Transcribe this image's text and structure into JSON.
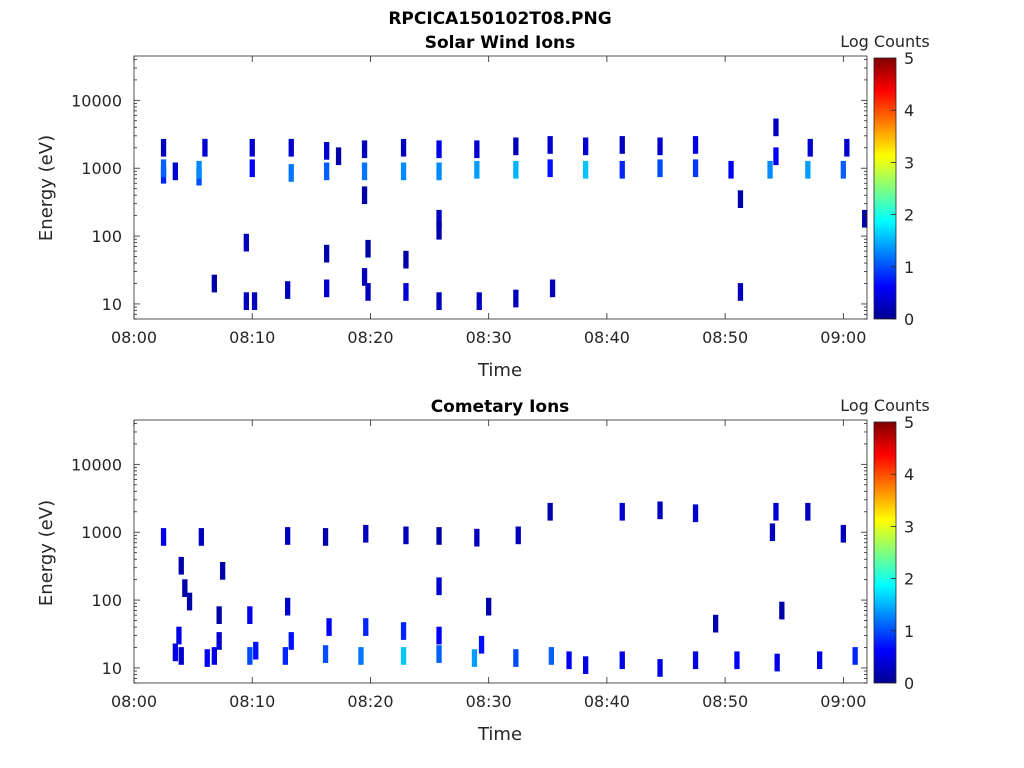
{
  "figure_title": "RPCICA150102T08.PNG",
  "chart_data": [
    {
      "type": "heatmap",
      "title": "Solar Wind Ions",
      "xlabel": "Time",
      "ylabel": "Energy (eV)",
      "x_ticks": [
        "08:00",
        "08:10",
        "08:20",
        "08:30",
        "08:40",
        "08:50",
        "09:00"
      ],
      "xlim": [
        "08:00",
        "09:02"
      ],
      "y_scale": "log",
      "y_ticks": [
        "10",
        "100",
        "1000",
        "10000"
      ],
      "ylim": [
        6,
        45000
      ],
      "colorbar": {
        "label": "Log Counts",
        "ticks": [
          "0",
          "1",
          "2",
          "3",
          "4",
          "5"
        ],
        "range": [
          0,
          5
        ],
        "colormap": "jet"
      },
      "grid": false,
      "cells": [
        {
          "t": "08:02.5",
          "e": 800,
          "v": 0.8
        },
        {
          "t": "08:02.5",
          "e": 1000,
          "v": 1.1
        },
        {
          "t": "08:02.5",
          "e": 2000,
          "v": 0.3
        },
        {
          "t": "08:03.5",
          "e": 900,
          "v": 0.4
        },
        {
          "t": "08:05.5",
          "e": 750,
          "v": 1.0
        },
        {
          "t": "08:05.5",
          "e": 950,
          "v": 1.3
        },
        {
          "t": "08:06",
          "e": 2000,
          "v": 0.4
        },
        {
          "t": "08:06.8",
          "e": 20,
          "v": 0.2
        },
        {
          "t": "08:09.5",
          "e": 80,
          "v": 0.3
        },
        {
          "t": "08:09.5",
          "e": 11,
          "v": 0.3
        },
        {
          "t": "08:10",
          "e": 1000,
          "v": 0.6
        },
        {
          "t": "08:10",
          "e": 2000,
          "v": 0.4
        },
        {
          "t": "08:10.2",
          "e": 11,
          "v": 0.3
        },
        {
          "t": "08:13",
          "e": 16,
          "v": 0.3
        },
        {
          "t": "08:13.3",
          "e": 850,
          "v": 1.2
        },
        {
          "t": "08:13.3",
          "e": 2000,
          "v": 0.4
        },
        {
          "t": "08:16.3",
          "e": 900,
          "v": 1.1
        },
        {
          "t": "08:16.3",
          "e": 1800,
          "v": 0.4
        },
        {
          "t": "08:16.3",
          "e": 17,
          "v": 0.4
        },
        {
          "t": "08:17.3",
          "e": 1500,
          "v": 0.2
        },
        {
          "t": "08:16.3",
          "e": 55,
          "v": 0.2
        },
        {
          "t": "08:19.5",
          "e": 900,
          "v": 1.2
        },
        {
          "t": "08:19.5",
          "e": 1900,
          "v": 0.3
        },
        {
          "t": "08:19.5",
          "e": 400,
          "v": 0.2
        },
        {
          "t": "08:19.5",
          "e": 25,
          "v": 0.3
        },
        {
          "t": "08:19.8",
          "e": 15,
          "v": 0.3
        },
        {
          "t": "08:19.8",
          "e": 65,
          "v": 0.2
        },
        {
          "t": "08:22.8",
          "e": 900,
          "v": 1.3
        },
        {
          "t": "08:22.8",
          "e": 2000,
          "v": 0.3
        },
        {
          "t": "08:23",
          "e": 45,
          "v": 0.2
        },
        {
          "t": "08:23",
          "e": 15,
          "v": 0.4
        },
        {
          "t": "08:25.8",
          "e": 900,
          "v": 1.3
        },
        {
          "t": "08:25.8",
          "e": 1900,
          "v": 0.5
        },
        {
          "t": "08:25.8",
          "e": 180,
          "v": 0.3
        },
        {
          "t": "08:25.8",
          "e": 120,
          "v": 0.2
        },
        {
          "t": "08:25.8",
          "e": 11,
          "v": 0.3
        },
        {
          "t": "08:29",
          "e": 950,
          "v": 1.4
        },
        {
          "t": "08:29",
          "e": 1900,
          "v": 0.4
        },
        {
          "t": "08:29.2",
          "e": 11,
          "v": 0.3
        },
        {
          "t": "08:32.3",
          "e": 950,
          "v": 1.5
        },
        {
          "t": "08:32.3",
          "e": 2100,
          "v": 0.3
        },
        {
          "t": "08:32.3",
          "e": 12,
          "v": 0.3
        },
        {
          "t": "08:35.2",
          "e": 1000,
          "v": 0.7
        },
        {
          "t": "08:35.2",
          "e": 2200,
          "v": 0.4
        },
        {
          "t": "08:35.4",
          "e": 17,
          "v": 0.3
        },
        {
          "t": "08:38.2",
          "e": 950,
          "v": 1.6
        },
        {
          "t": "08:38.2",
          "e": 2100,
          "v": 0.4
        },
        {
          "t": "08:41.3",
          "e": 950,
          "v": 0.8
        },
        {
          "t": "08:41.3",
          "e": 2200,
          "v": 0.3
        },
        {
          "t": "08:44.5",
          "e": 1000,
          "v": 1.0
        },
        {
          "t": "08:44.5",
          "e": 2100,
          "v": 0.4
        },
        {
          "t": "08:47.5",
          "e": 1000,
          "v": 0.9
        },
        {
          "t": "08:47.5",
          "e": 2200,
          "v": 0.5
        },
        {
          "t": "08:50.5",
          "e": 950,
          "v": 0.6
        },
        {
          "t": "08:51.3",
          "e": 15,
          "v": 0.3
        },
        {
          "t": "08:51.3",
          "e": 350,
          "v": 0.2
        },
        {
          "t": "08:53.8",
          "e": 950,
          "v": 1.3
        },
        {
          "t": "08:54.3",
          "e": 1500,
          "v": 0.6
        },
        {
          "t": "08:54.3",
          "e": 4000,
          "v": 0.3
        },
        {
          "t": "08:57",
          "e": 950,
          "v": 1.4
        },
        {
          "t": "08:57.2",
          "e": 2000,
          "v": 0.4
        },
        {
          "t": "09:00",
          "e": 950,
          "v": 1.1
        },
        {
          "t": "09:00.3",
          "e": 2000,
          "v": 0.4
        },
        {
          "t": "09:01.8",
          "e": 180,
          "v": 0.2
        }
      ]
    },
    {
      "type": "heatmap",
      "title": "Cometary Ions",
      "xlabel": "Time",
      "ylabel": "Energy (eV)",
      "x_ticks": [
        "08:00",
        "08:10",
        "08:20",
        "08:30",
        "08:40",
        "08:50",
        "09:00"
      ],
      "xlim": [
        "08:00",
        "09:02"
      ],
      "y_scale": "log",
      "y_ticks": [
        "10",
        "100",
        "1000",
        "10000"
      ],
      "ylim": [
        6,
        45000
      ],
      "colorbar": {
        "label": "Log Counts",
        "ticks": [
          "0",
          "1",
          "2",
          "3",
          "4",
          "5"
        ],
        "range": [
          0,
          5
        ],
        "colormap": "jet"
      },
      "grid": false,
      "cells": [
        {
          "t": "08:02.5",
          "e": 850,
          "v": 0.5
        },
        {
          "t": "08:05.7",
          "e": 850,
          "v": 0.3
        },
        {
          "t": "08:03.5",
          "e": 17,
          "v": 0.5
        },
        {
          "t": "08:03.8",
          "e": 30,
          "v": 0.5
        },
        {
          "t": "08:04",
          "e": 15,
          "v": 0.4
        },
        {
          "t": "08:04",
          "e": 320,
          "v": 0.2
        },
        {
          "t": "08:04.3",
          "e": 150,
          "v": 0.2
        },
        {
          "t": "08:04.7",
          "e": 95,
          "v": 0.2
        },
        {
          "t": "08:06.2",
          "e": 14,
          "v": 0.6
        },
        {
          "t": "08:06.8",
          "e": 15,
          "v": 0.5
        },
        {
          "t": "08:07.2",
          "e": 25,
          "v": 0.4
        },
        {
          "t": "08:07.5",
          "e": 270,
          "v": 0.2
        },
        {
          "t": "08:07.2",
          "e": 60,
          "v": 0.2
        },
        {
          "t": "08:09.8",
          "e": 15,
          "v": 1.0
        },
        {
          "t": "08:09.8",
          "e": 60,
          "v": 0.5
        },
        {
          "t": "08:10.3",
          "e": 18,
          "v": 0.7
        },
        {
          "t": "08:12.8",
          "e": 15,
          "v": 0.8
        },
        {
          "t": "08:13.3",
          "e": 25,
          "v": 0.7
        },
        {
          "t": "08:13",
          "e": 80,
          "v": 0.4
        },
        {
          "t": "08:13",
          "e": 880,
          "v": 0.3
        },
        {
          "t": "08:16.2",
          "e": 16,
          "v": 1.0
        },
        {
          "t": "08:16.5",
          "e": 40,
          "v": 0.6
        },
        {
          "t": "08:16.2",
          "e": 850,
          "v": 0.2
        },
        {
          "t": "08:19.2",
          "e": 15,
          "v": 1.2
        },
        {
          "t": "08:19.6",
          "e": 40,
          "v": 0.8
        },
        {
          "t": "08:19.6",
          "e": 950,
          "v": 0.3
        },
        {
          "t": "08:22.8",
          "e": 15,
          "v": 1.6
        },
        {
          "t": "08:22.8",
          "e": 35,
          "v": 0.8
        },
        {
          "t": "08:23",
          "e": 900,
          "v": 0.3
        },
        {
          "t": "08:25.8",
          "e": 16,
          "v": 1.1
        },
        {
          "t": "08:25.8",
          "e": 30,
          "v": 0.6
        },
        {
          "t": "08:25.8",
          "e": 160,
          "v": 0.4
        },
        {
          "t": "08:25.8",
          "e": 880,
          "v": 0.2
        },
        {
          "t": "08:28.8",
          "e": 14,
          "v": 1.4
        },
        {
          "t": "08:29.4",
          "e": 22,
          "v": 0.7
        },
        {
          "t": "08:29",
          "e": 830,
          "v": 0.3
        },
        {
          "t": "08:30",
          "e": 80,
          "v": 0.2
        },
        {
          "t": "08:32.3",
          "e": 14,
          "v": 1.0
        },
        {
          "t": "08:32.5",
          "e": 900,
          "v": 0.3
        },
        {
          "t": "08:35.3",
          "e": 15,
          "v": 1.1
        },
        {
          "t": "08:35.2",
          "e": 2000,
          "v": 0.2
        },
        {
          "t": "08:36.8",
          "e": 13,
          "v": 0.6
        },
        {
          "t": "08:38.2",
          "e": 11,
          "v": 0.5
        },
        {
          "t": "08:41.3",
          "e": 13,
          "v": 0.5
        },
        {
          "t": "08:41.3",
          "e": 2000,
          "v": 0.4
        },
        {
          "t": "08:44.5",
          "e": 10,
          "v": 0.5
        },
        {
          "t": "08:44.5",
          "e": 2100,
          "v": 0.3
        },
        {
          "t": "08:47.5",
          "e": 13,
          "v": 0.5
        },
        {
          "t": "08:47.5",
          "e": 1900,
          "v": 0.4
        },
        {
          "t": "08:49.2",
          "e": 45,
          "v": 0.2
        },
        {
          "t": "08:51",
          "e": 13,
          "v": 0.6
        },
        {
          "t": "08:54",
          "e": 1000,
          "v": 0.3
        },
        {
          "t": "08:54.4",
          "e": 12,
          "v": 0.5
        },
        {
          "t": "08:54.3",
          "e": 2000,
          "v": 0.4
        },
        {
          "t": "08:54.8",
          "e": 70,
          "v": 0.2
        },
        {
          "t": "08:57",
          "e": 2000,
          "v": 0.3
        },
        {
          "t": "08:58",
          "e": 13,
          "v": 0.5
        },
        {
          "t": "09:00",
          "e": 950,
          "v": 0.3
        },
        {
          "t": "09:01",
          "e": 15,
          "v": 0.8
        }
      ]
    }
  ]
}
